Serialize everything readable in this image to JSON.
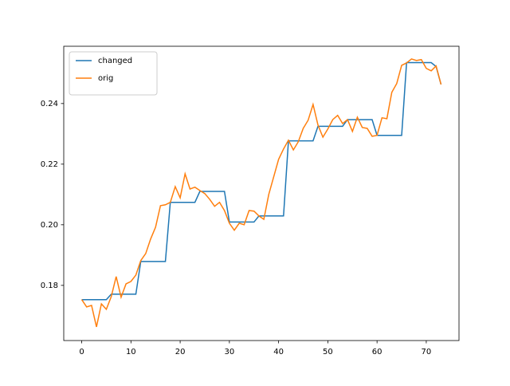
{
  "chart_data": {
    "type": "line",
    "x": [
      0,
      1,
      2,
      3,
      4,
      5,
      6,
      7,
      8,
      9,
      10,
      11,
      12,
      13,
      14,
      15,
      16,
      17,
      18,
      19,
      20,
      21,
      22,
      23,
      24,
      25,
      26,
      27,
      28,
      29,
      30,
      31,
      32,
      33,
      34,
      35,
      36,
      37,
      38,
      39,
      40,
      41,
      42,
      43,
      44,
      45,
      46,
      47,
      48,
      49,
      50,
      51,
      52,
      53,
      54,
      55,
      56,
      57,
      58,
      59,
      60,
      61,
      62,
      63,
      64,
      65,
      66,
      67,
      68,
      69,
      70,
      71,
      72,
      73
    ],
    "series": [
      {
        "name": "changed",
        "color": "#1f77b4",
        "values": [
          0.1753,
          0.1753,
          0.1753,
          0.1753,
          0.1753,
          0.1753,
          0.1771,
          0.1771,
          0.1771,
          0.1771,
          0.1771,
          0.1771,
          0.1879,
          0.1879,
          0.1879,
          0.1879,
          0.1879,
          0.1879,
          0.2074,
          0.2074,
          0.2074,
          0.2074,
          0.2074,
          0.2074,
          0.211,
          0.211,
          0.211,
          0.211,
          0.211,
          0.211,
          0.2009,
          0.2009,
          0.2009,
          0.2009,
          0.2009,
          0.2009,
          0.2029,
          0.2029,
          0.2029,
          0.2029,
          0.2029,
          0.2029,
          0.2277,
          0.2277,
          0.2277,
          0.2277,
          0.2277,
          0.2277,
          0.2325,
          0.2325,
          0.2325,
          0.2325,
          0.2325,
          0.2325,
          0.2347,
          0.2347,
          0.2347,
          0.2347,
          0.2347,
          0.2347,
          0.2295,
          0.2295,
          0.2295,
          0.2295,
          0.2295,
          0.2295,
          0.2535,
          0.2535,
          0.2535,
          0.2535,
          0.2535,
          0.2535,
          0.2522,
          0.2463
        ]
      },
      {
        "name": "orig",
        "color": "#ff7f0e",
        "values": [
          0.1753,
          0.1729,
          0.1734,
          0.1663,
          0.1739,
          0.1721,
          0.1763,
          0.1829,
          0.1761,
          0.1805,
          0.1813,
          0.1834,
          0.1882,
          0.1905,
          0.1953,
          0.1992,
          0.2063,
          0.2066,
          0.2074,
          0.2126,
          0.2089,
          0.2168,
          0.2118,
          0.2124,
          0.2113,
          0.2103,
          0.2084,
          0.2061,
          0.2074,
          0.2047,
          0.2005,
          0.1982,
          0.2005,
          0.2,
          0.2047,
          0.2045,
          0.2029,
          0.2018,
          0.21,
          0.2158,
          0.2216,
          0.225,
          0.2279,
          0.2247,
          0.2274,
          0.2318,
          0.2345,
          0.2397,
          0.2329,
          0.2289,
          0.2316,
          0.2347,
          0.2361,
          0.2334,
          0.2347,
          0.2308,
          0.2355,
          0.2321,
          0.2318,
          0.2292,
          0.2295,
          0.2353,
          0.235,
          0.2437,
          0.2466,
          0.2526,
          0.2534,
          0.2547,
          0.2542,
          0.2545,
          0.2516,
          0.2508,
          0.2524,
          0.2463
        ]
      }
    ],
    "xlim": [
      -3.65,
      76.65
    ],
    "xticks": [
      0,
      10,
      20,
      30,
      40,
      50,
      60,
      70
    ],
    "ylim": [
      0.1618,
      0.2589
    ],
    "yticks": [
      0.18,
      {
        "value": 0.2,
        "label": "0.20"
      },
      0.22,
      0.24
    ],
    "legend": "upper left"
  }
}
